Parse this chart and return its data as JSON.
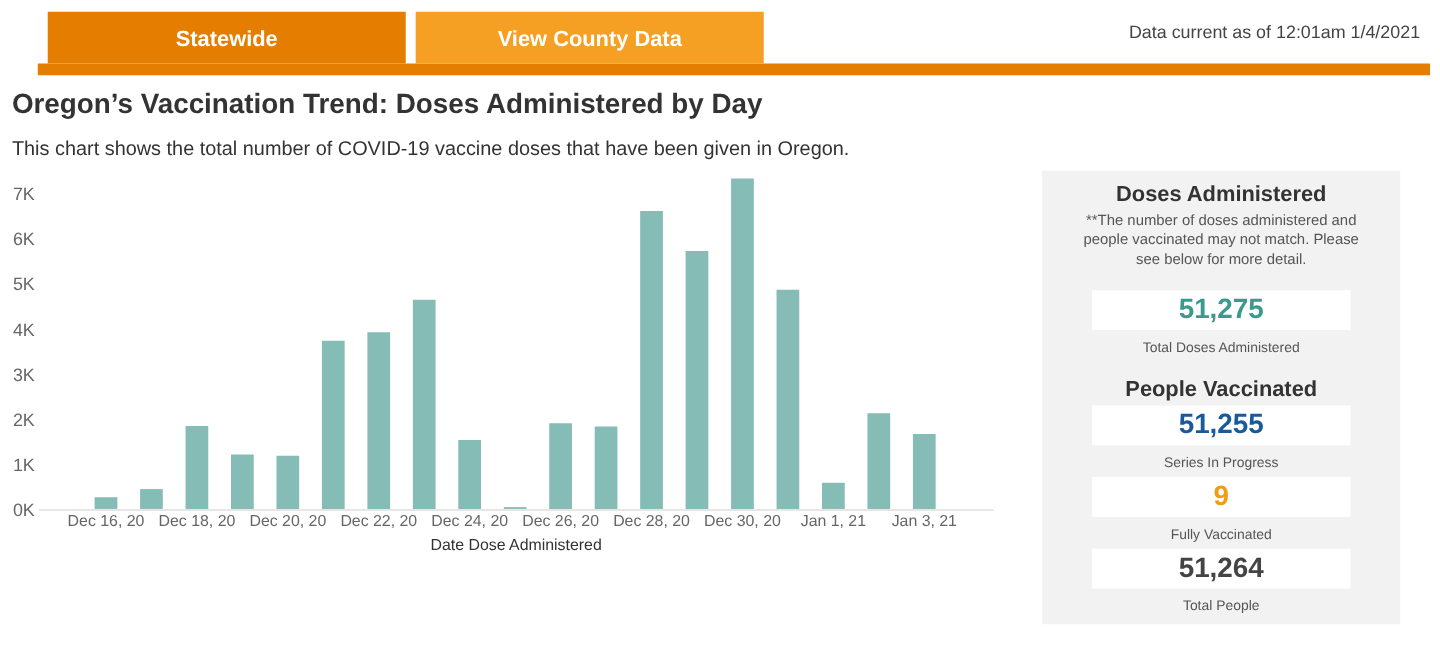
{
  "chart_data": [
    {
      "type": "bar",
      "title": "Oregon’s Vaccination Trend: Doses Administered by Day",
      "subtitle": "This chart shows the total number of COVID-19 vaccine doses that have been given in Oregon.",
      "xlabel": "Date Dose Administered",
      "annotations": [
        "Statewide",
        "View County Data",
        "Data current as of 12:01am 1/4/2021"
      ],
      "categories": [
        null,
        "Dec 16, 20",
        null,
        "Dec 18, 20",
        null,
        "Dec 20, 20",
        null,
        "Dec 22, 20",
        null,
        "Dec 24, 20",
        null,
        "Dec 26, 20",
        null,
        "Dec 28, 20",
        null,
        "Dec 30, 20",
        null,
        "Jan 1, 21",
        null,
        "Jan 3, 21",
        null
      ],
      "values": [
        null,
        260,
        440,
        1840,
        1210,
        1180,
        3730,
        3920,
        4640,
        1530,
        40,
        1900,
        1830,
        6610,
        5720,
        7330,
        4860,
        580,
        2120,
        1660,
        null
      ],
      "color": "#86bcb6",
      "ylim": [
        0,
        7500
      ],
      "yticks": [
        {
          "value": 0,
          "label": "0K"
        },
        {
          "value": 1000,
          "label": "1K"
        },
        {
          "value": 2000,
          "label": "2K"
        },
        {
          "value": 3000,
          "label": "3K"
        },
        {
          "value": 4000,
          "label": "4K"
        },
        {
          "value": 5000,
          "label": "5K"
        },
        {
          "value": 6000,
          "label": "6K"
        },
        {
          "value": 7000,
          "label": "7K"
        }
      ],
      "grid": false
    },
    {
      "type": "other",
      "title": "Doses Administered",
      "subtitle": "**The number of doses administered and people vaccinated may not match. Please see below for more detail.",
      "annotations": [
        "51,275",
        "Total Doses Administered",
        "People Vaccinated",
        "51,255",
        "Series In Progress",
        "9",
        "Fully Vaccinated",
        "51,264",
        "Total People"
      ]
    }
  ]
}
